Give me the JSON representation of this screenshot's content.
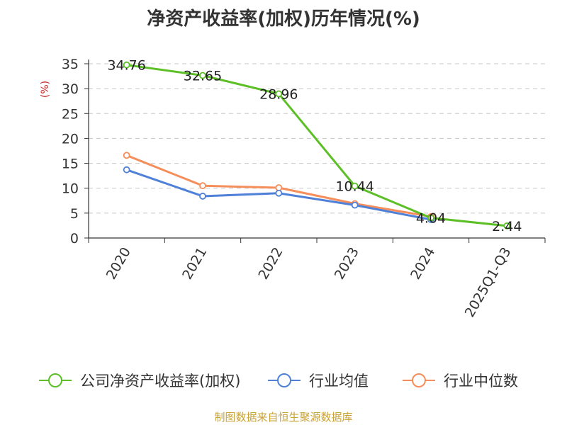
{
  "chart_data": {
    "type": "line",
    "title": "净资产收益率(加权)历年情况(%)",
    "ylabel": "(%)",
    "ylim": [
      0,
      35
    ],
    "yticks": [
      0,
      5,
      10,
      15,
      20,
      25,
      30,
      35
    ],
    "grid": true,
    "legend_position": "bottom",
    "categories": [
      "2020",
      "2021",
      "2022",
      "2023",
      "2024",
      "2025Q1-Q3"
    ],
    "series": [
      {
        "name": "公司净资产收益率(加权)",
        "color": "#5cbf25",
        "values": [
          34.76,
          32.65,
          28.96,
          10.44,
          4.04,
          2.44
        ],
        "labels": [
          "34.76",
          "32.65",
          "28.96",
          "10.44",
          "4.04",
          "2.44"
        ]
      },
      {
        "name": "行业均值",
        "color": "#4f81d8",
        "values": [
          13.7,
          8.4,
          9.0,
          6.6,
          3.7,
          null
        ]
      },
      {
        "name": "行业中位数",
        "color": "#f58e5a",
        "values": [
          16.6,
          10.5,
          10.1,
          6.9,
          4.3,
          null
        ]
      }
    ],
    "source": "制图数据来自恒生聚源数据库",
    "source_color": "#c9a233"
  }
}
